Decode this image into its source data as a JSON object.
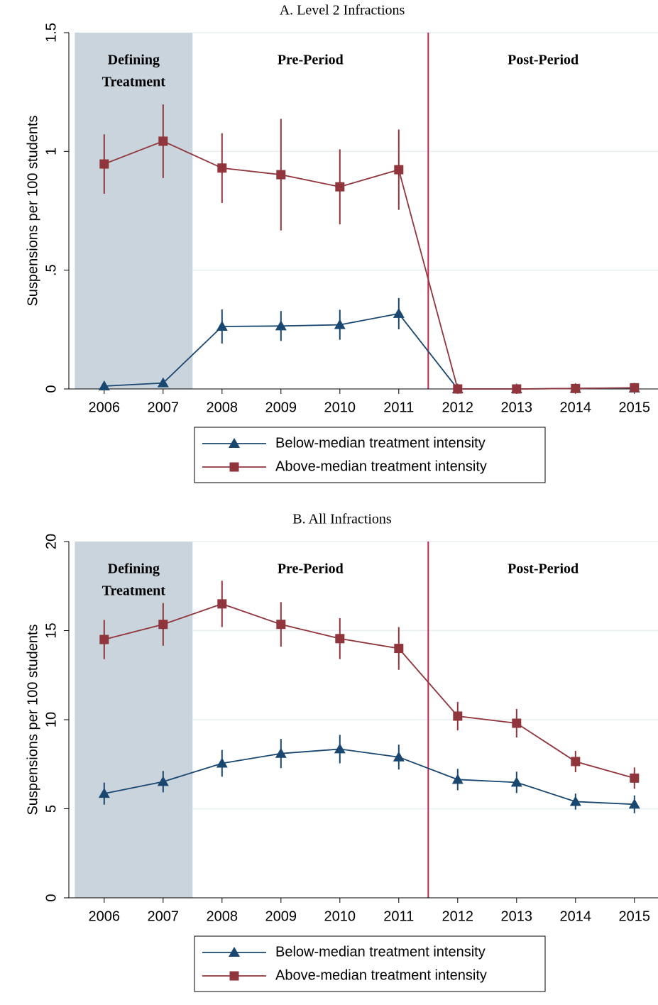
{
  "chart_data": [
    {
      "type": "line",
      "title": "A. Level 2 Infractions",
      "ylabel": "Suspensions per 100 students",
      "x": [
        2006,
        2007,
        2008,
        2009,
        2010,
        2011,
        2012,
        2013,
        2014,
        2015
      ],
      "xlim": [
        2005.4,
        2015.4
      ],
      "xticks": [
        2006,
        2007,
        2008,
        2009,
        2010,
        2011,
        2012,
        2013,
        2014,
        2015
      ],
      "ylim": [
        0,
        1.5
      ],
      "yticks": [
        0,
        {
          "value": 0.5,
          "label": ".5"
        },
        1,
        1.5
      ],
      "grid": true,
      "shaded_region": [
        2005.5,
        2007.5
      ],
      "shade_color": "#c9d4dd",
      "vline": 2011.5,
      "vline_color": "#c0284f",
      "region_labels": [
        [
          "Defining",
          "Treatment"
        ],
        [
          "Pre-Period"
        ],
        [
          "Post-Period"
        ]
      ],
      "series": [
        {
          "name": "Below-median treatment intensity",
          "color": "#1a476f",
          "marker": "triangle",
          "values": [
            0.012,
            0.025,
            0.263,
            0.265,
            0.27,
            0.317,
            0,
            0,
            0.002,
            0.003
          ],
          "errors": [
            0.003,
            0.005,
            0.072,
            0.063,
            0.063,
            0.066,
            0,
            0,
            0.001,
            0.001
          ]
        },
        {
          "name": "Above-median treatment intensity",
          "color": "#90353b",
          "marker": "square",
          "values": [
            0.947,
            1.043,
            0.93,
            0.902,
            0.851,
            0.923,
            0,
            0,
            0.002,
            0.005
          ],
          "errors": [
            0.125,
            0.155,
            0.147,
            0.235,
            0.158,
            0.169,
            0,
            0,
            0.001,
            0.003
          ]
        }
      ]
    },
    {
      "type": "line",
      "title": "B. All Infractions",
      "ylabel": "Suspensions per 100 students",
      "x": [
        2006,
        2007,
        2008,
        2009,
        2010,
        2011,
        2012,
        2013,
        2014,
        2015
      ],
      "xlim": [
        2005.4,
        2015.4
      ],
      "xticks": [
        2006,
        2007,
        2008,
        2009,
        2010,
        2011,
        2012,
        2013,
        2014,
        2015
      ],
      "ylim": [
        0,
        20
      ],
      "yticks": [
        0,
        5,
        10,
        15,
        20
      ],
      "grid": true,
      "shaded_region": [
        2005.5,
        2007.5
      ],
      "shade_color": "#c9d4dd",
      "vline": 2011.5,
      "vline_color": "#c0284f",
      "region_labels": [
        [
          "Defining",
          "Treatment"
        ],
        [
          "Pre-Period"
        ],
        [
          "Post-Period"
        ]
      ],
      "series": [
        {
          "name": "Below-median treatment intensity",
          "color": "#1a476f",
          "marker": "triangle",
          "values": [
            5.85,
            6.52,
            7.55,
            8.1,
            8.35,
            7.9,
            6.64,
            6.48,
            5.4,
            5.25
          ],
          "errors": [
            0.62,
            0.6,
            0.75,
            0.82,
            0.8,
            0.7,
            0.6,
            0.6,
            0.45,
            0.5
          ]
        },
        {
          "name": "Above-median treatment intensity",
          "color": "#90353b",
          "marker": "square",
          "values": [
            14.5,
            15.35,
            16.5,
            15.35,
            14.55,
            14.0,
            10.2,
            9.8,
            7.65,
            6.72
          ],
          "errors": [
            1.1,
            1.2,
            1.3,
            1.25,
            1.15,
            1.2,
            0.8,
            0.8,
            0.6,
            0.6
          ]
        }
      ]
    }
  ]
}
